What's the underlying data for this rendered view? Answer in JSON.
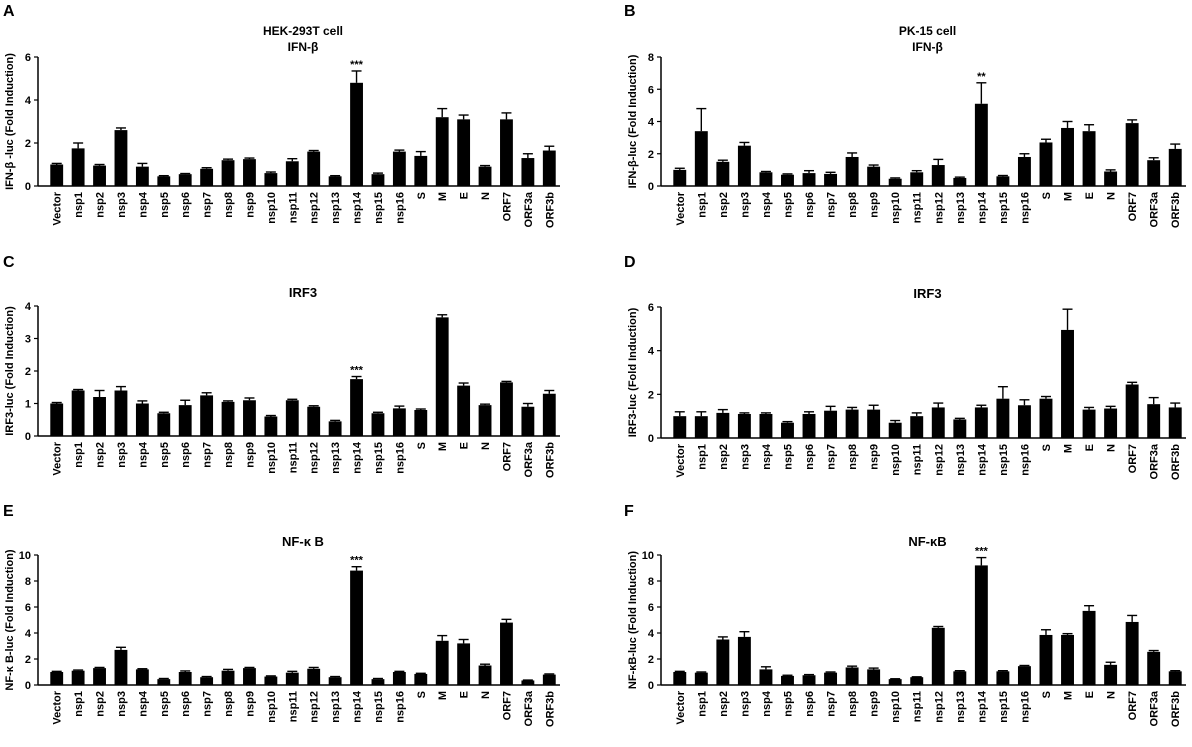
{
  "chart_data": [
    {
      "panel": "A",
      "type": "bar",
      "title": "HEK-293T cell",
      "subtitle": "IFN-β",
      "ylabel": "IFN-β -luc (Fold Induction)",
      "xlabel": "",
      "ylim": [
        0,
        6
      ],
      "yticks": [
        0,
        2,
        4,
        6
      ],
      "categories": [
        "Vector",
        "nsp1",
        "nsp2",
        "nsp3",
        "nsp4",
        "nsp5",
        "nsp6",
        "nsp7",
        "nsp8",
        "nsp9",
        "nsp10",
        "nsp11",
        "nsp12",
        "nsp13",
        "nsp14",
        "nsp15",
        "nsp16",
        "S",
        "M",
        "E",
        "N",
        "ORF7",
        "ORF3a",
        "ORF3b"
      ],
      "values": [
        1.0,
        1.75,
        0.95,
        2.6,
        0.9,
        0.45,
        0.55,
        0.8,
        1.2,
        1.25,
        0.6,
        1.15,
        1.6,
        0.45,
        4.8,
        0.55,
        1.6,
        1.4,
        3.2,
        3.1,
        0.9,
        3.1,
        1.3,
        1.65
      ],
      "errors": [
        0.05,
        0.25,
        0.05,
        0.1,
        0.15,
        0.03,
        0.03,
        0.05,
        0.05,
        0.05,
        0.05,
        0.12,
        0.05,
        0.03,
        0.55,
        0.05,
        0.07,
        0.2,
        0.4,
        0.2,
        0.05,
        0.3,
        0.2,
        0.2
      ],
      "annotations": [
        {
          "category": "nsp14",
          "text": "***"
        }
      ],
      "grid": false
    },
    {
      "panel": "B",
      "type": "bar",
      "title": "PK-15 cell",
      "subtitle": "IFN-β",
      "ylabel": "IFN-β-luc (Fold Induction)",
      "xlabel": "",
      "ylim": [
        0,
        8
      ],
      "yticks": [
        0,
        2,
        4,
        6,
        8
      ],
      "categories": [
        "Vector",
        "nsp1",
        "nsp2",
        "nsp3",
        "nsp4",
        "nsp5",
        "nsp6",
        "nsp7",
        "nsp8",
        "nsp9",
        "nsp10",
        "nsp11",
        "nsp12",
        "nsp13",
        "nsp14",
        "nsp15",
        "nsp16",
        "S",
        "M",
        "E",
        "N",
        "ORF7",
        "ORF3a",
        "ORF3b"
      ],
      "values": [
        1.0,
        3.4,
        1.5,
        2.5,
        0.85,
        0.7,
        0.8,
        0.75,
        1.8,
        1.2,
        0.45,
        0.85,
        1.3,
        0.5,
        5.1,
        0.6,
        1.8,
        2.7,
        3.6,
        3.4,
        0.9,
        3.9,
        1.6,
        2.3
      ],
      "errors": [
        0.1,
        1.4,
        0.1,
        0.2,
        0.05,
        0.05,
        0.15,
        0.1,
        0.25,
        0.1,
        0.05,
        0.1,
        0.35,
        0.05,
        1.3,
        0.05,
        0.2,
        0.2,
        0.4,
        0.4,
        0.1,
        0.2,
        0.15,
        0.3
      ],
      "annotations": [
        {
          "category": "nsp14",
          "text": "**"
        }
      ],
      "grid": false
    },
    {
      "panel": "C",
      "type": "bar",
      "title": "IRF3",
      "subtitle": "",
      "ylabel": "IRF3-luc (Fold Induction)",
      "xlabel": "",
      "ylim": [
        0,
        4
      ],
      "yticks": [
        0,
        1,
        2,
        3,
        4
      ],
      "categories": [
        "Vector",
        "nsp1",
        "nsp2",
        "nsp3",
        "nsp4",
        "nsp5",
        "nsp6",
        "nsp7",
        "nsp8",
        "nsp9",
        "nsp10",
        "nsp11",
        "nsp12",
        "nsp13",
        "nsp14",
        "nsp15",
        "nsp16",
        "S",
        "M",
        "E",
        "N",
        "ORF7",
        "ORF3a",
        "ORF3b"
      ],
      "values": [
        1.0,
        1.4,
        1.2,
        1.4,
        1.0,
        0.7,
        0.95,
        1.25,
        1.05,
        1.1,
        0.6,
        1.1,
        0.9,
        0.45,
        1.75,
        0.7,
        0.85,
        0.8,
        3.65,
        1.55,
        0.95,
        1.65,
        0.9,
        1.3
      ],
      "errors": [
        0.03,
        0.03,
        0.2,
        0.12,
        0.08,
        0.03,
        0.15,
        0.08,
        0.03,
        0.07,
        0.03,
        0.03,
        0.03,
        0.03,
        0.08,
        0.03,
        0.07,
        0.03,
        0.08,
        0.08,
        0.03,
        0.03,
        0.1,
        0.1
      ],
      "annotations": [
        {
          "category": "nsp14",
          "text": "***"
        }
      ],
      "grid": false
    },
    {
      "panel": "D",
      "type": "bar",
      "title": "IRF3",
      "subtitle": "",
      "ylabel": "IRF3-luc (Fold Induction)",
      "xlabel": "",
      "ylim": [
        0,
        6
      ],
      "yticks": [
        0,
        2,
        4,
        6
      ],
      "categories": [
        "Vector",
        "nsp1",
        "nsp2",
        "nsp3",
        "nsp4",
        "nsp5",
        "nsp6",
        "nsp7",
        "nsp8",
        "nsp9",
        "nsp10",
        "nsp11",
        "nsp12",
        "nsp13",
        "nsp14",
        "nsp15",
        "nsp16",
        "S",
        "M",
        "E",
        "N",
        "ORF7",
        "ORF3a",
        "ORF3b"
      ],
      "values": [
        1.0,
        1.0,
        1.15,
        1.1,
        1.1,
        0.7,
        1.1,
        1.25,
        1.3,
        1.3,
        0.7,
        1.0,
        1.4,
        0.85,
        1.4,
        1.8,
        1.5,
        1.8,
        4.95,
        1.3,
        1.35,
        2.45,
        1.55,
        1.4
      ],
      "errors": [
        0.2,
        0.2,
        0.15,
        0.05,
        0.05,
        0.05,
        0.1,
        0.2,
        0.1,
        0.2,
        0.1,
        0.15,
        0.2,
        0.05,
        0.1,
        0.55,
        0.25,
        0.1,
        0.95,
        0.1,
        0.1,
        0.1,
        0.3,
        0.2
      ],
      "annotations": [],
      "grid": false
    },
    {
      "panel": "E",
      "type": "bar",
      "title": "NF-κ B",
      "subtitle": "",
      "ylabel": "NF-κ B-luc (Fold Induction)",
      "xlabel": "",
      "ylim": [
        0,
        10
      ],
      "yticks": [
        0,
        2,
        4,
        6,
        8,
        10
      ],
      "categories": [
        "Vector",
        "nsp1",
        "nsp2",
        "nsp3",
        "nsp4",
        "nsp5",
        "nsp6",
        "nsp7",
        "nsp8",
        "nsp9",
        "nsp10",
        "nsp11",
        "nsp12",
        "nsp13",
        "nsp14",
        "nsp15",
        "nsp16",
        "S",
        "M",
        "E",
        "N",
        "ORF7",
        "ORF3a",
        "ORF3b"
      ],
      "values": [
        1.0,
        1.1,
        1.3,
        2.7,
        1.2,
        0.45,
        1.0,
        0.6,
        1.1,
        1.3,
        0.65,
        0.95,
        1.25,
        0.6,
        8.8,
        0.45,
        1.0,
        0.85,
        3.4,
        3.2,
        1.5,
        4.8,
        0.35,
        0.8
      ],
      "errors": [
        0.05,
        0.05,
        0.05,
        0.2,
        0.05,
        0.05,
        0.08,
        0.05,
        0.1,
        0.05,
        0.05,
        0.1,
        0.1,
        0.05,
        0.3,
        0.05,
        0.05,
        0.05,
        0.4,
        0.3,
        0.1,
        0.25,
        0.03,
        0.05
      ],
      "annotations": [
        {
          "category": "nsp14",
          "text": "***"
        }
      ],
      "grid": false
    },
    {
      "panel": "F",
      "type": "bar",
      "title": "NF-κB",
      "subtitle": "",
      "ylabel": "NF-κB-luc (Fold Induction)",
      "xlabel": "",
      "ylim": [
        0,
        10
      ],
      "yticks": [
        0,
        2,
        4,
        6,
        8,
        10
      ],
      "categories": [
        "Vector",
        "nsp1",
        "nsp2",
        "nsp3",
        "nsp4",
        "nsp5",
        "nsp6",
        "nsp7",
        "nsp8",
        "nsp9",
        "nsp10",
        "nsp11",
        "nsp12",
        "nsp13",
        "nsp14",
        "nsp15",
        "nsp16",
        "S",
        "M",
        "E",
        "N",
        "ORF7",
        "ORF3a",
        "ORF3b"
      ],
      "values": [
        1.0,
        0.95,
        3.5,
        3.7,
        1.2,
        0.7,
        0.75,
        0.95,
        1.35,
        1.2,
        0.45,
        0.6,
        4.4,
        1.05,
        9.2,
        1.05,
        1.45,
        3.85,
        3.85,
        5.7,
        1.55,
        4.85,
        2.55,
        1.05
      ],
      "errors": [
        0.05,
        0.05,
        0.2,
        0.4,
        0.2,
        0.05,
        0.05,
        0.05,
        0.1,
        0.1,
        0.03,
        0.03,
        0.1,
        0.05,
        0.6,
        0.05,
        0.05,
        0.4,
        0.1,
        0.4,
        0.2,
        0.5,
        0.1,
        0.05
      ],
      "annotations": [
        {
          "category": "nsp14",
          "text": "***"
        }
      ],
      "grid": false
    }
  ]
}
